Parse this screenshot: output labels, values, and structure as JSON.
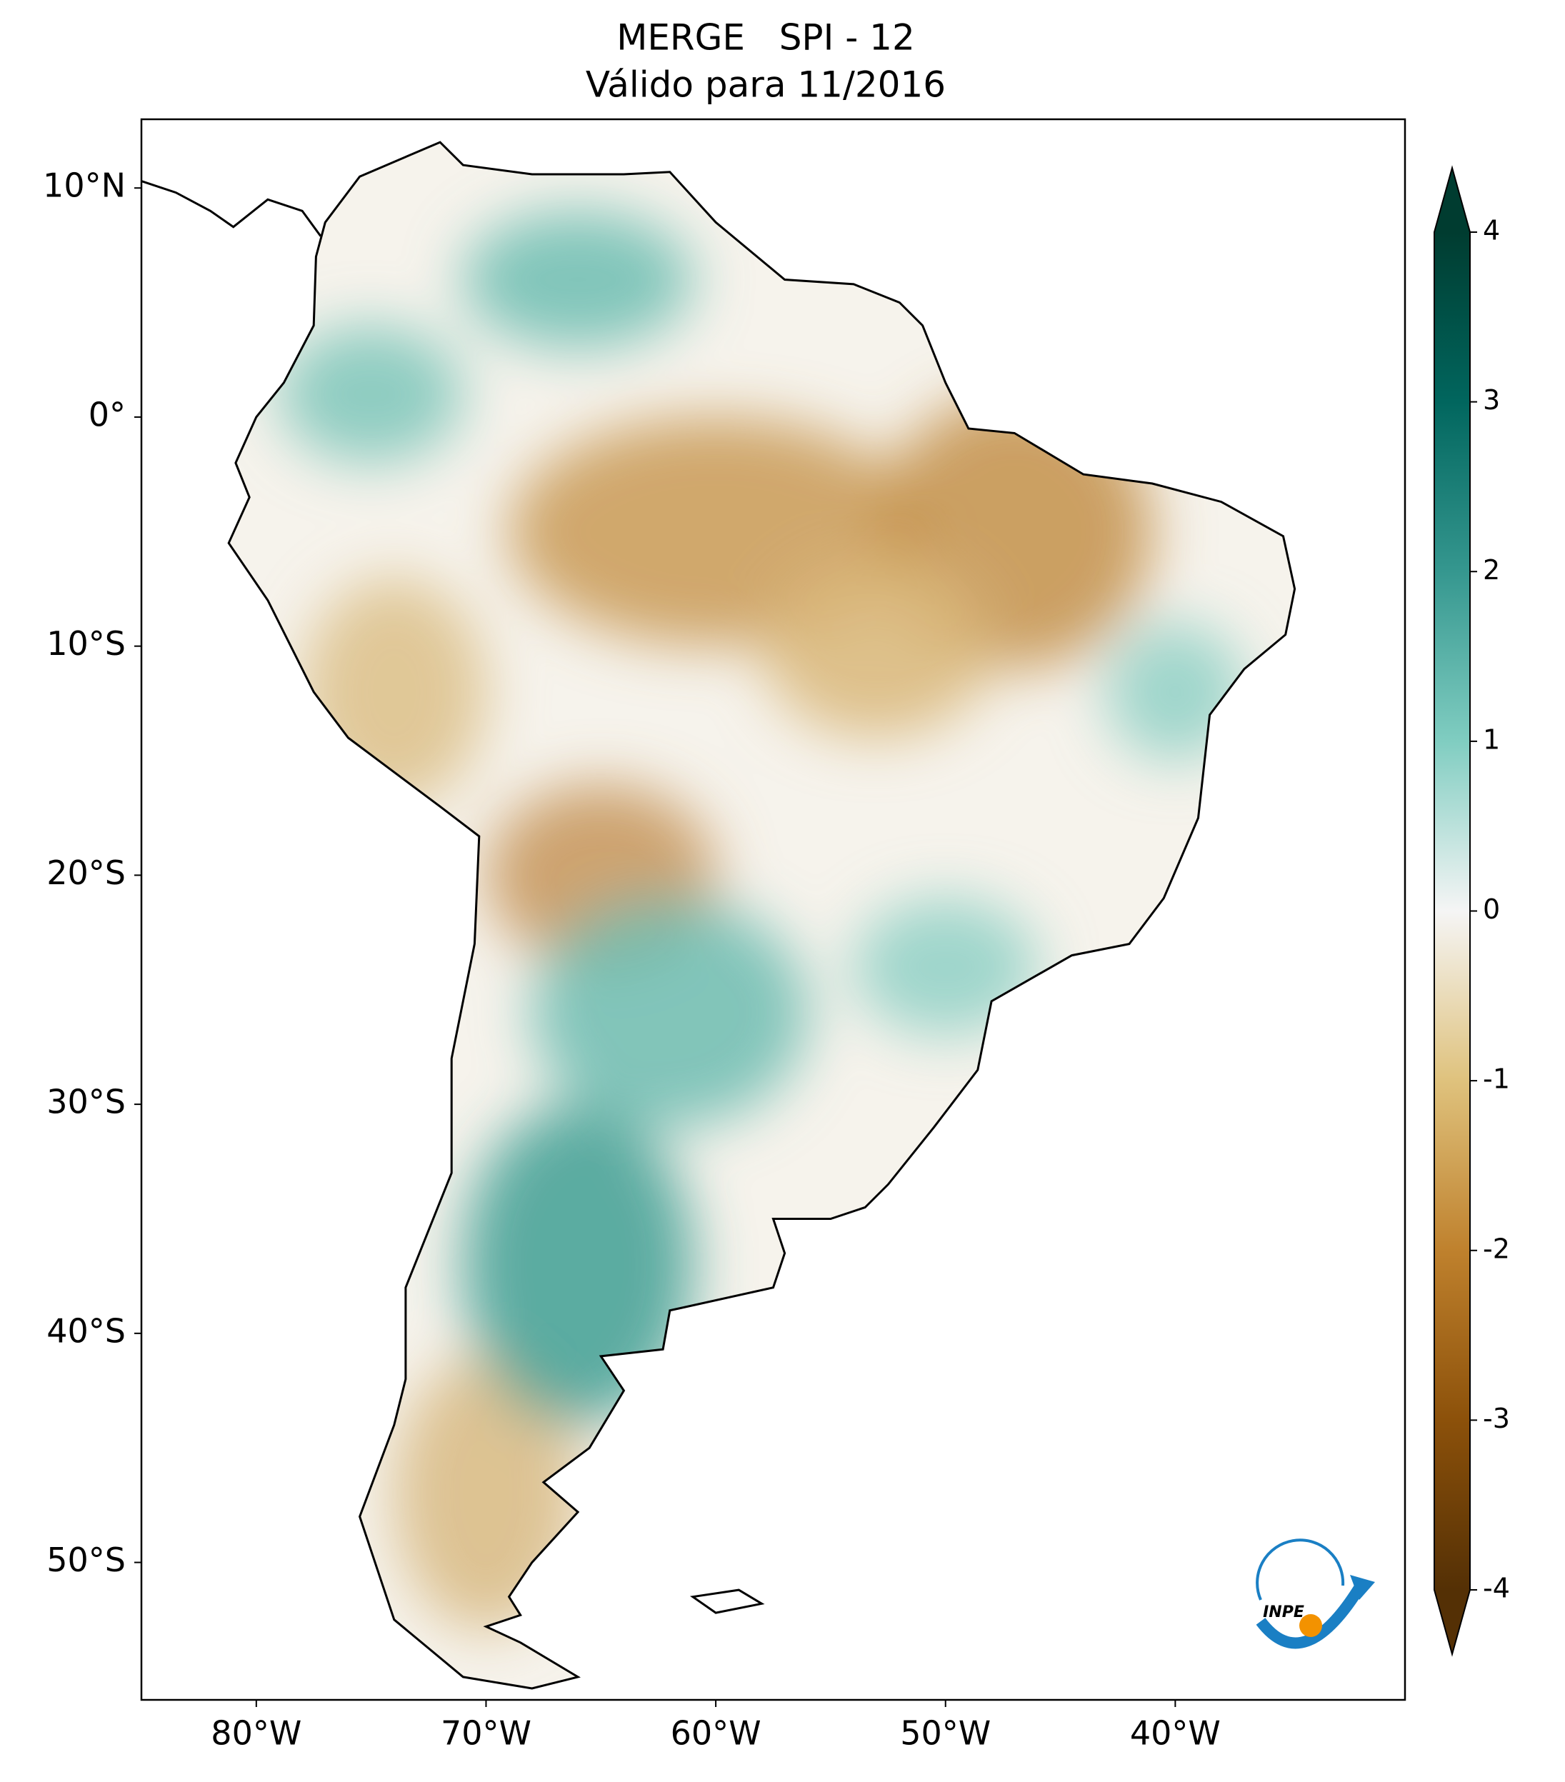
{
  "chart_data": {
    "type": "map",
    "title": "MERGE   SPI - 12",
    "subtitle": "Válido para 11/2016",
    "xlim": [
      -85,
      -30
    ],
    "ylim": [
      -56,
      13
    ],
    "xticks": [
      {
        "value": -80,
        "label": "80°W"
      },
      {
        "value": -70,
        "label": "70°W"
      },
      {
        "value": -60,
        "label": "60°W"
      },
      {
        "value": -50,
        "label": "50°W"
      },
      {
        "value": -40,
        "label": "40°W"
      }
    ],
    "yticks": [
      {
        "value": 10,
        "label": "10°N"
      },
      {
        "value": 0,
        "label": "0°"
      },
      {
        "value": -10,
        "label": "10°S"
      },
      {
        "value": -20,
        "label": "20°S"
      },
      {
        "value": -30,
        "label": "30°S"
      },
      {
        "value": -40,
        "label": "40°S"
      },
      {
        "value": -50,
        "label": "50°S"
      }
    ],
    "colorbar": {
      "lim": [
        -4,
        4
      ],
      "ticks": [
        -4,
        -3,
        -2,
        -1,
        0,
        1,
        2,
        3,
        4
      ],
      "colormap": "BrBG"
    },
    "logo": "INPE"
  }
}
